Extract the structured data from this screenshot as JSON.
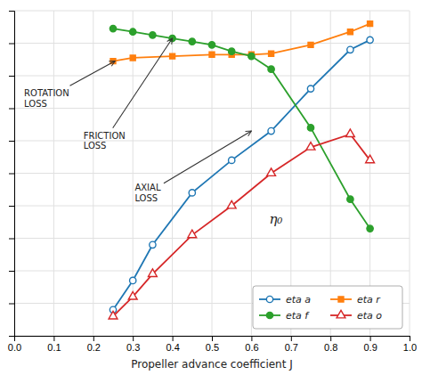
{
  "chart_data": {
    "type": "line",
    "xlabel": "Propeller advance coefficient J",
    "xlim": [
      0.0,
      1.0
    ],
    "ylim": [
      0.0,
      1.0
    ],
    "xticks": [
      {
        "value": 0.0,
        "label": "0.0"
      },
      0.1,
      0.2,
      0.3,
      0.4,
      0.5,
      0.6,
      0.7,
      0.8,
      0.9,
      {
        "value": 1.0,
        "label": "1.0"
      }
    ],
    "yticks": [
      0.0,
      0.1,
      0.2,
      0.3,
      0.4,
      0.5,
      0.6,
      0.7,
      0.8,
      0.9,
      1.0
    ],
    "tick_labels": "x",
    "grid": true,
    "legend": "lower right",
    "series": [
      {
        "name": "eta a",
        "marker": "circle-open",
        "x": [
          0.25,
          0.3,
          0.35,
          0.45,
          0.55,
          0.65,
          0.75,
          0.85,
          0.9
        ],
        "values": [
          0.08,
          0.17,
          0.28,
          0.44,
          0.54,
          0.63,
          0.76,
          0.88,
          0.91
        ]
      },
      {
        "name": "eta r",
        "marker": "square",
        "x": [
          0.25,
          0.3,
          0.4,
          0.5,
          0.55,
          0.6,
          0.65,
          0.75,
          0.85,
          0.9
        ],
        "values": [
          0.845,
          0.855,
          0.86,
          0.865,
          0.865,
          0.865,
          0.868,
          0.895,
          0.935,
          0.96
        ]
      },
      {
        "name": "eta f",
        "marker": "circle",
        "x": [
          0.25,
          0.3,
          0.35,
          0.4,
          0.45,
          0.5,
          0.55,
          0.6,
          0.65,
          0.75,
          0.85,
          0.9
        ],
        "values": [
          0.945,
          0.935,
          0.925,
          0.915,
          0.905,
          0.895,
          0.875,
          0.86,
          0.82,
          0.64,
          0.42,
          0.33
        ]
      },
      {
        "name": "eta o",
        "marker": "triangle-open",
        "x": [
          0.25,
          0.3,
          0.35,
          0.45,
          0.55,
          0.65,
          0.75,
          0.85,
          0.9
        ],
        "values": [
          0.06,
          0.12,
          0.19,
          0.31,
          0.4,
          0.5,
          0.58,
          0.62,
          0.54
        ]
      }
    ],
    "annotations": [
      {
        "text": "ROTATION\nLOSS",
        "x": 0.255,
        "y": 0.845,
        "text_x": 0.025,
        "text_y": 0.73
      },
      {
        "text": "FRICTION\nLOSS",
        "x": 0.4,
        "y": 0.915,
        "text_x": 0.175,
        "text_y": 0.6
      },
      {
        "text": "AXIAL\nLOSS",
        "x": 0.6,
        "y": 0.63,
        "text_x": 0.305,
        "text_y": 0.44
      },
      {
        "text": "η₀",
        "x": 0.645,
        "y": 0.36
      }
    ]
  }
}
